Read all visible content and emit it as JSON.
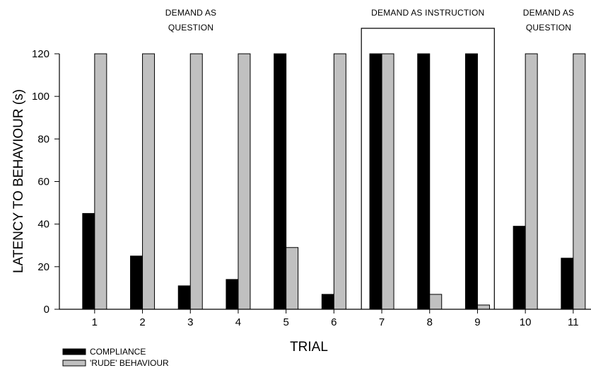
{
  "chart_data": {
    "type": "bar",
    "xlabel": "TRIAL",
    "ylabel": "LATENCY TO BEHAVIOUR (s)",
    "categories": [
      "1",
      "2",
      "3",
      "4",
      "5",
      "6",
      "7",
      "8",
      "9",
      "10",
      "11"
    ],
    "ylim": [
      0,
      120
    ],
    "yticks": [
      0,
      20,
      40,
      60,
      80,
      100,
      120
    ],
    "grid": false,
    "legend_position": "bottom-left",
    "series": [
      {
        "name": "COMPLIANCE",
        "color": "#000000",
        "values": [
          45,
          25,
          11,
          14,
          120,
          7,
          120,
          120,
          120,
          39,
          24
        ]
      },
      {
        "name": "'RUDE' BEHAVIOUR",
        "color": "#c0c0c0",
        "values": [
          120,
          120,
          120,
          120,
          29,
          120,
          120,
          7,
          2,
          120,
          120
        ]
      }
    ],
    "phases": [
      {
        "label_lines": [
          "DEMAND AS",
          "QUESTION"
        ],
        "from": 1,
        "to": 6,
        "boxed": false
      },
      {
        "label_lines": [
          "DEMAND AS INSTRUCTION"
        ],
        "from": 7,
        "to": 9,
        "boxed": true
      },
      {
        "label_lines": [
          "DEMAND AS",
          "QUESTION"
        ],
        "from": 10,
        "to": 11,
        "boxed": false
      }
    ]
  }
}
